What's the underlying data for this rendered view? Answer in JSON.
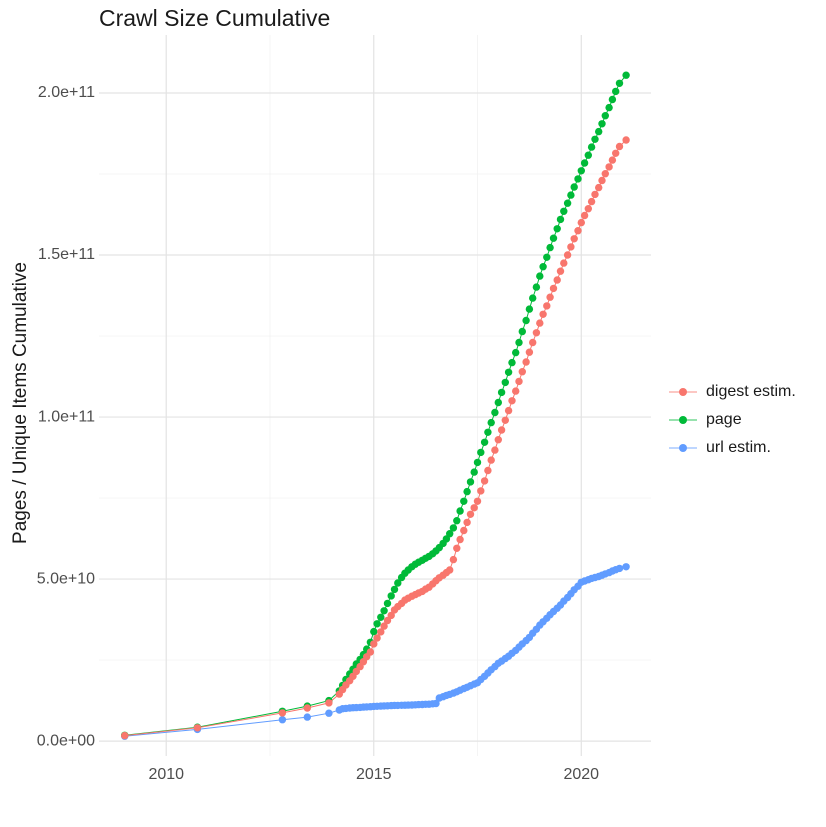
{
  "chart_data": {
    "type": "scatter-line",
    "title": "Crawl Size Cumulative",
    "xlabel": "",
    "ylabel": "Pages / Unique Items Cumulative",
    "value_unit": "billions (1e9 items)",
    "grid": "major+minor",
    "legend_position": "right-center",
    "xlim": [
      2008.38,
      2021.68
    ],
    "ylim": [
      -4.6,
      217.9
    ],
    "x_axis": {
      "ticks": [
        {
          "value": 2010,
          "label": "2010"
        },
        {
          "value": 2015,
          "label": "2015"
        },
        {
          "value": 2020,
          "label": "2020"
        }
      ],
      "minor": [
        2012.5,
        2017.5
      ]
    },
    "y_axis": {
      "ticks": [
        {
          "value": 0,
          "label": "0.0e+00"
        },
        {
          "value": 50,
          "label": "5.0e+10"
        },
        {
          "value": 100,
          "label": "1.0e+11"
        },
        {
          "value": 150,
          "label": "1.5e+11"
        },
        {
          "value": 200,
          "label": "2.0e+11"
        }
      ],
      "minor": [
        25,
        75,
        125,
        175
      ]
    },
    "x": [
      2009,
      2010.75,
      2012.8,
      2013.4,
      2013.92,
      2014.17,
      2014.25,
      2014.33,
      2014.42,
      2014.5,
      2014.58,
      2014.67,
      2014.75,
      2014.83,
      2014.92,
      2015,
      2015.08,
      2015.17,
      2015.25,
      2015.33,
      2015.42,
      2015.5,
      2015.58,
      2015.67,
      2015.75,
      2015.83,
      2015.92,
      2016,
      2016.08,
      2016.17,
      2016.25,
      2016.33,
      2016.42,
      2016.5,
      2016.58,
      2016.67,
      2016.75,
      2016.83,
      2016.92,
      2017,
      2017.08,
      2017.17,
      2017.25,
      2017.33,
      2017.42,
      2017.5,
      2017.58,
      2017.67,
      2017.75,
      2017.83,
      2017.92,
      2018,
      2018.08,
      2018.17,
      2018.25,
      2018.33,
      2018.42,
      2018.5,
      2018.58,
      2018.67,
      2018.75,
      2018.83,
      2018.92,
      2019,
      2019.08,
      2019.17,
      2019.25,
      2019.33,
      2019.42,
      2019.5,
      2019.58,
      2019.67,
      2019.75,
      2019.83,
      2019.92,
      2020,
      2020.08,
      2020.17,
      2020.25,
      2020.33,
      2020.42,
      2020.5,
      2020.58,
      2020.67,
      2020.75,
      2020.83,
      2020.92,
      2021.08
    ],
    "series": [
      {
        "name": "digest estim.",
        "color": "#F8766D",
        "z": 3,
        "values": [
          1.7,
          4.1,
          8.7,
          10.2,
          11.8,
          14.5,
          15.9,
          17.3,
          18.6,
          20,
          21.5,
          23,
          24.5,
          26,
          27.5,
          30,
          31.8,
          33.7,
          35.5,
          37.2,
          38.8,
          40.5,
          41.5,
          42.5,
          43.5,
          44.1,
          44.7,
          45.2,
          45.7,
          46.2,
          46.9,
          47.5,
          48.5,
          49.5,
          50.4,
          51.2,
          52,
          52.8,
          56,
          59.5,
          62.2,
          65,
          67.5,
          70,
          72,
          74,
          77.2,
          80.3,
          83.5,
          86.7,
          89.8,
          93,
          96,
          99,
          102,
          105,
          108,
          111,
          114,
          117,
          120,
          123,
          126,
          129,
          131.7,
          134.3,
          137,
          139.7,
          142.3,
          145,
          147.5,
          150,
          152.5,
          155,
          157.5,
          160,
          162.2,
          164.3,
          166.5,
          168.7,
          170.8,
          173,
          175.1,
          177.2,
          179.3,
          181.4,
          183.5,
          185.5
        ]
      },
      {
        "name": "page",
        "color": "#00BA38",
        "z": 2,
        "values": [
          1.8,
          4.3,
          9.2,
          10.8,
          12.5,
          15.5,
          17.2,
          19,
          20.7,
          22.2,
          23.8,
          25.2,
          26.7,
          28.4,
          30.5,
          33.8,
          36.2,
          38.2,
          40.2,
          42.5,
          44.8,
          46.8,
          48.8,
          50.5,
          51.8,
          52.8,
          53.8,
          54.6,
          55.2,
          55.8,
          56.4,
          57,
          57.8,
          58.7,
          59.7,
          61,
          62.4,
          64,
          65.8,
          68,
          71,
          74,
          77,
          80,
          83,
          86,
          89.1,
          92.2,
          95.3,
          98.3,
          101.4,
          104.5,
          107.6,
          110.7,
          113.8,
          116.8,
          119.9,
          123,
          126.4,
          129.8,
          133.3,
          136.7,
          140.1,
          143.5,
          146.4,
          149.3,
          152.3,
          155.2,
          158.1,
          161,
          163.5,
          166,
          168.5,
          171,
          173.5,
          176,
          178.4,
          180.8,
          183.3,
          185.7,
          188.1,
          190.5,
          193,
          195.5,
          198,
          200.5,
          203,
          205.5
        ]
      },
      {
        "name": "url estim.",
        "color": "#619CFF",
        "z": 1,
        "values": [
          1.5,
          3.6,
          6.6,
          7.4,
          8.6,
          9.6,
          10,
          10.1,
          10.2,
          10.3,
          10.35,
          10.4,
          10.5,
          10.55,
          10.6,
          10.7,
          10.75,
          10.8,
          10.85,
          10.9,
          10.95,
          11,
          11.02,
          11.05,
          11.08,
          11.1,
          11.15,
          11.2,
          11.25,
          11.3,
          11.35,
          11.4,
          11.5,
          11.6,
          13.3,
          13.7,
          14.1,
          14.4,
          14.8,
          15.2,
          15.7,
          16.2,
          16.6,
          17.1,
          17.6,
          18,
          19,
          20,
          21,
          22,
          23,
          24,
          24.7,
          25.5,
          26.2,
          27.1,
          28,
          29,
          30,
          31,
          32,
          33.3,
          34.5,
          35.8,
          36.8,
          37.9,
          39,
          40,
          41,
          42,
          43.2,
          44.3,
          45.5,
          46.7,
          47.8,
          49,
          49.4,
          49.8,
          50.2,
          50.5,
          50.8,
          51.2,
          51.6,
          52,
          52.5,
          52.9,
          53.3,
          53.8
        ]
      }
    ],
    "style": {
      "grid_major_color": "#e3e3e3",
      "grid_minor_color": "#f0f0f0",
      "tick_label_color": "#4d4d4d",
      "point_radius": 3.7
    }
  }
}
